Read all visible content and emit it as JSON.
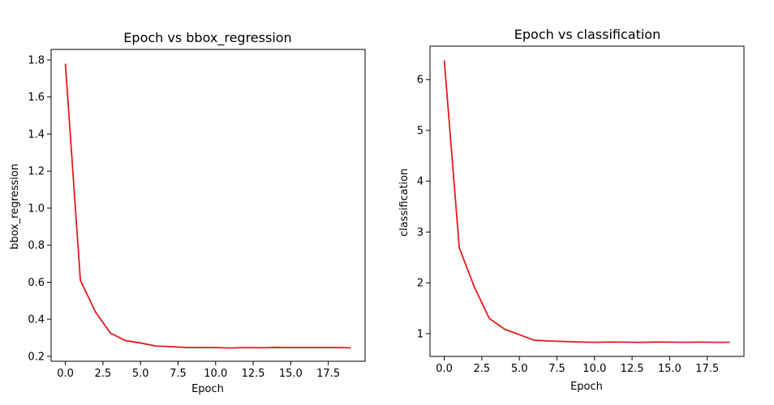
{
  "chart_data": [
    {
      "type": "line",
      "title": "Epoch vs bbox_regression",
      "xlabel": "Epoch",
      "ylabel": "bbox_regression",
      "x": [
        0,
        1,
        2,
        3,
        4,
        5,
        6,
        7,
        8,
        9,
        10,
        11,
        12,
        13,
        14,
        15,
        16,
        17,
        18,
        19
      ],
      "series": [
        {
          "values": [
            1.78,
            0.61,
            0.44,
            0.325,
            0.285,
            0.272,
            0.256,
            0.252,
            0.248,
            0.247,
            0.247,
            0.245,
            0.247,
            0.246,
            0.248,
            0.247,
            0.247,
            0.247,
            0.247,
            0.246
          ],
          "color": "#e41a1c"
        }
      ],
      "xticks": [
        0.0,
        2.5,
        5.0,
        7.5,
        10.0,
        12.5,
        15.0,
        17.5
      ],
      "xtick_labels": [
        "0.0",
        "2.5",
        "5.0",
        "7.5",
        "10.0",
        "12.5",
        "15.0",
        "17.5"
      ],
      "yticks": [
        0.2,
        0.4,
        0.6,
        0.8,
        1.0,
        1.2,
        1.4,
        1.6,
        1.8
      ],
      "ytick_labels": [
        "0.2",
        "0.4",
        "0.6",
        "0.8",
        "1.0",
        "1.2",
        "1.4",
        "1.6",
        "1.8"
      ],
      "xlim": [
        -0.95,
        19.95
      ],
      "ylim": [
        0.1733,
        1.8567
      ],
      "grid": false
    },
    {
      "type": "line",
      "title": "Epoch vs classification",
      "xlabel": "Epoch",
      "ylabel": "classification",
      "x": [
        0,
        1,
        2,
        3,
        4,
        5,
        6,
        7,
        8,
        9,
        10,
        11,
        12,
        13,
        14,
        15,
        16,
        17,
        18,
        19
      ],
      "series": [
        {
          "values": [
            6.38,
            2.69,
            1.92,
            1.3,
            1.09,
            0.98,
            0.87,
            0.855,
            0.845,
            0.835,
            0.83,
            0.835,
            0.833,
            0.828,
            0.835,
            0.833,
            0.83,
            0.833,
            0.83,
            0.83
          ],
          "color": "#e41a1c"
        }
      ],
      "xticks": [
        0.0,
        2.5,
        5.0,
        7.5,
        10.0,
        12.5,
        15.0,
        17.5
      ],
      "xtick_labels": [
        "0.0",
        "2.5",
        "5.0",
        "7.5",
        "10.0",
        "12.5",
        "15.0",
        "17.5"
      ],
      "yticks": [
        1,
        2,
        3,
        4,
        5,
        6
      ],
      "ytick_labels": [
        "1",
        "2",
        "3",
        "4",
        "5",
        "6"
      ],
      "xlim": [
        -0.95,
        19.95
      ],
      "ylim": [
        0.5525,
        6.6575
      ],
      "grid": false
    }
  ]
}
